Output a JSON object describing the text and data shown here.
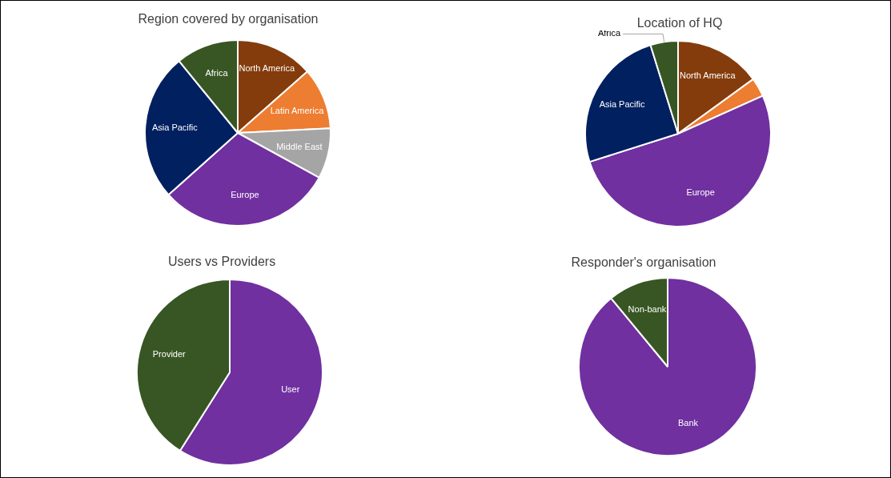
{
  "chart_data": [
    {
      "type": "pie",
      "title": "Region covered by organisation",
      "categories": [
        "North America",
        "Latin America",
        "Middle East",
        "Europe",
        "Asia Pacific",
        "Africa"
      ],
      "values": [
        13.5,
        10.7,
        8.8,
        30.4,
        25.7,
        10.9
      ],
      "colors": [
        "#843c0c",
        "#ed7d31",
        "#a5a5a5",
        "#7030a0",
        "#002060",
        "#375623"
      ],
      "legend": false
    },
    {
      "type": "pie",
      "title": "Location of HQ",
      "categories": [
        "North America",
        null,
        "Europe",
        "Asia Pacific",
        "Africa"
      ],
      "values": [
        15,
        3.3,
        51.8,
        25.1,
        4.8
      ],
      "colors": [
        "#843c0c",
        "#ed7d31",
        "#7030a0",
        "#002060",
        "#375623"
      ],
      "legend": false
    },
    {
      "type": "pie",
      "title": "Users vs Providers",
      "categories": [
        "User",
        "Provider"
      ],
      "values": [
        59,
        41
      ],
      "colors": [
        "#7030a0",
        "#375623"
      ],
      "legend": false
    },
    {
      "type": "pie",
      "title": "Responder's organisation",
      "categories": [
        "Bank",
        "Non-bank"
      ],
      "values": [
        89,
        11
      ],
      "colors": [
        "#7030a0",
        "#375623"
      ],
      "legend": false
    }
  ]
}
